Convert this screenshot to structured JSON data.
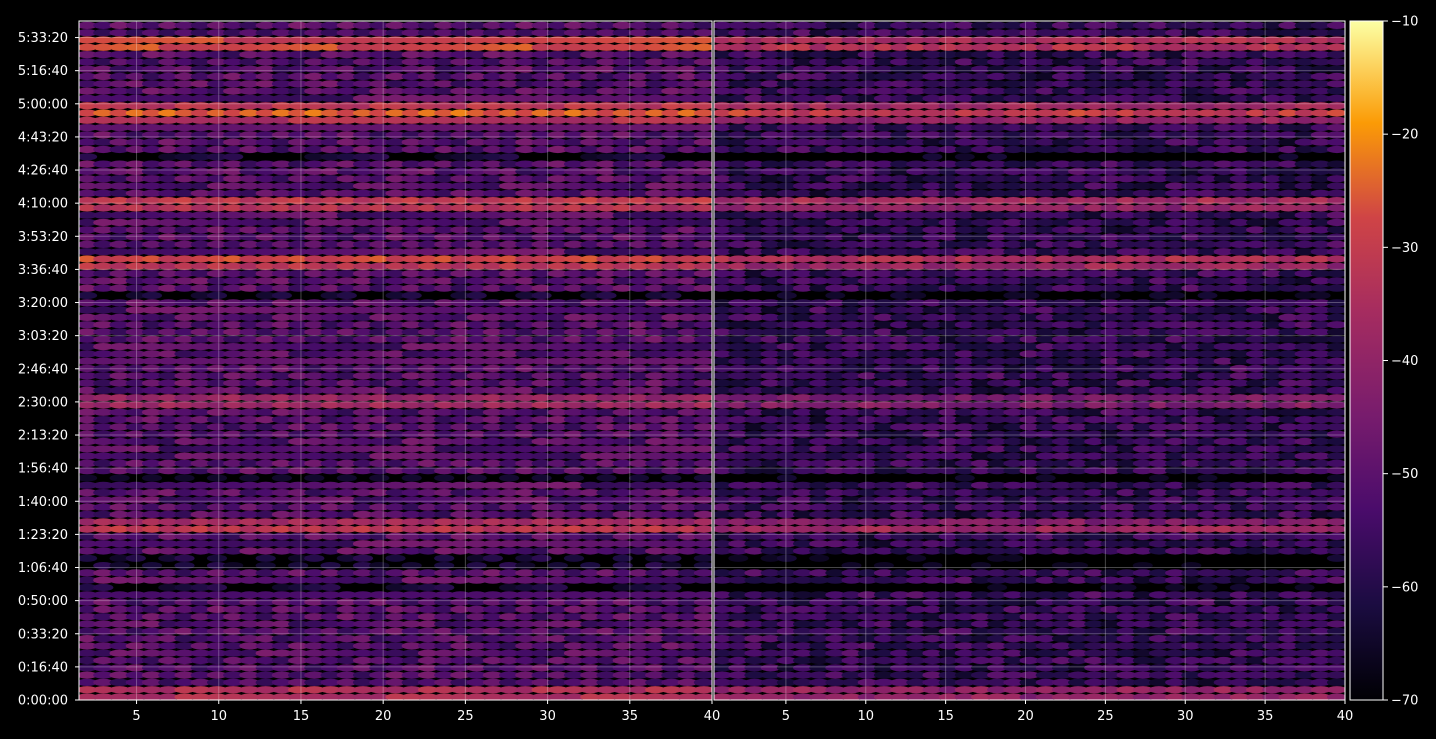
{
  "chart_data": {
    "type": "heatmap",
    "panels": [
      {
        "xlim": [
          1.5,
          40
        ],
        "x_ticks": [
          5,
          10,
          15,
          20,
          25,
          30,
          35,
          40
        ],
        "x_tick_labels": [
          "5",
          "10",
          "15",
          "20",
          "25",
          "30",
          "35",
          "40"
        ]
      },
      {
        "xlim": [
          0.5,
          40
        ],
        "x_ticks": [
          5,
          10,
          15,
          20,
          25,
          30,
          35,
          40
        ],
        "x_tick_labels": [
          "5",
          "10",
          "15",
          "20",
          "25",
          "30",
          "35",
          "40"
        ]
      }
    ],
    "y_axis": {
      "ylim_seconds": [
        0,
        20500
      ],
      "ticks_seconds": [
        0,
        1000,
        2000,
        3000,
        4000,
        5000,
        6000,
        7000,
        8000,
        9000,
        10000,
        11000,
        12000,
        13000,
        14000,
        15000,
        16000,
        17000,
        18000,
        19000,
        20000
      ],
      "tick_labels": [
        "0:00:00",
        "0:16:40",
        "0:33:20",
        "0:50:00",
        "1:06:40",
        "1:23:20",
        "1:40:00",
        "1:56:40",
        "2:13:20",
        "2:30:00",
        "2:46:40",
        "3:03:20",
        "3:20:00",
        "3:36:40",
        "3:53:20",
        "4:10:00",
        "4:26:40",
        "4:43:20",
        "5:00:00",
        "5:16:40",
        "5:33:20"
      ]
    },
    "colorbar": {
      "range": [
        -70,
        -10
      ],
      "ticks": [
        -10,
        -20,
        -30,
        -40,
        -50,
        -60,
        -70
      ],
      "tick_labels": [
        "−10",
        "−20",
        "−30",
        "−40",
        "−50",
        "−60",
        "−70"
      ],
      "colormap": "inferno"
    },
    "grid": true,
    "background": "#000000",
    "dark_gap_bands_seconds": [
      [
        16200,
        16600
      ],
      [
        12000,
        12400
      ],
      [
        6650,
        6850
      ],
      [
        4050,
        4300
      ],
      [
        3200,
        3400
      ]
    ],
    "bright_bands": [
      {
        "t": 19800,
        "level": -24
      },
      {
        "t": 17750,
        "level": -24
      },
      {
        "t": 15000,
        "level": -28
      },
      {
        "t": 13250,
        "level": -26
      },
      {
        "t": 9000,
        "level": -34
      },
      {
        "t": 5200,
        "level": -30
      },
      {
        "t": 200,
        "level": -30
      }
    ]
  }
}
